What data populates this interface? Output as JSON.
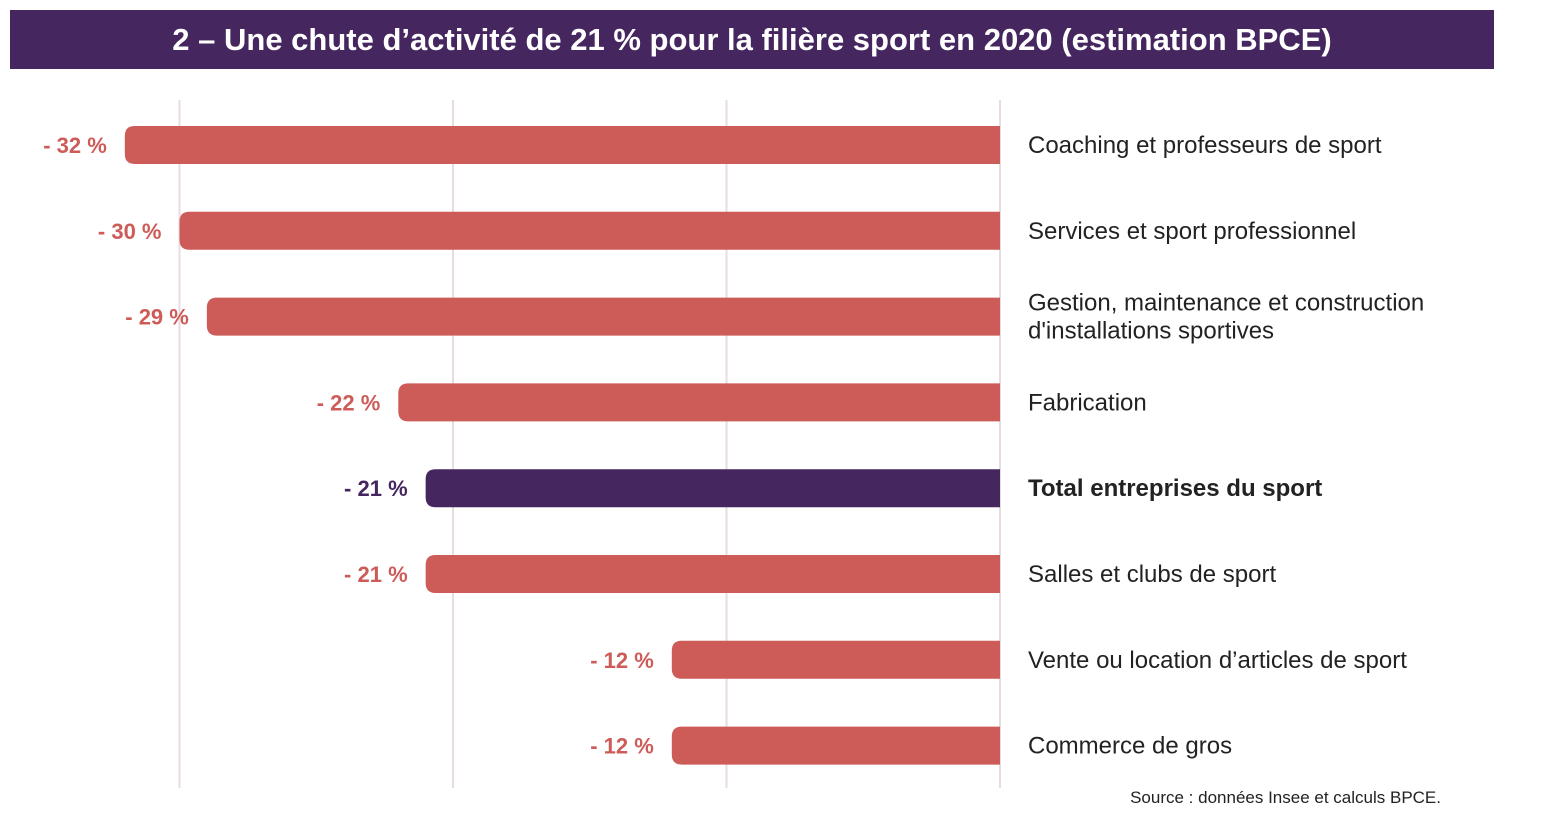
{
  "chart_data": {
    "type": "bar",
    "orientation": "horizontal",
    "title": "2 – Une chute d’activité de 21 % pour la filière sport en 2020 (estimation BPCE)",
    "source": "Source : données Insee et calculs BPCE.",
    "xlim": [
      -32,
      0
    ],
    "grid": true,
    "gridlines": [
      -30,
      -20,
      -10,
      0
    ],
    "categories": [
      "Coaching et professeurs de sport",
      "Services et sport professionnel",
      "Gestion, maintenance et construction\nd'installations sportives",
      "Fabrication",
      "Total entreprises du sport",
      "Salles et clubs de sport",
      "Vente ou location d’articles de sport",
      "Commerce de gros"
    ],
    "values": [
      -32,
      -30,
      -29,
      -22,
      -21,
      -21,
      -12,
      -12
    ],
    "data_labels": [
      "- 32 %",
      "- 30 %",
      "- 29 %",
      "- 22 %",
      "- 21 %",
      "- 21 %",
      "- 12 %",
      "- 12 %"
    ],
    "highlight_index": 4,
    "colors": {
      "bar": "#cd5c58",
      "highlight": "#45265f",
      "title_bg": "#45265f",
      "grid": "#e8dce3"
    }
  }
}
